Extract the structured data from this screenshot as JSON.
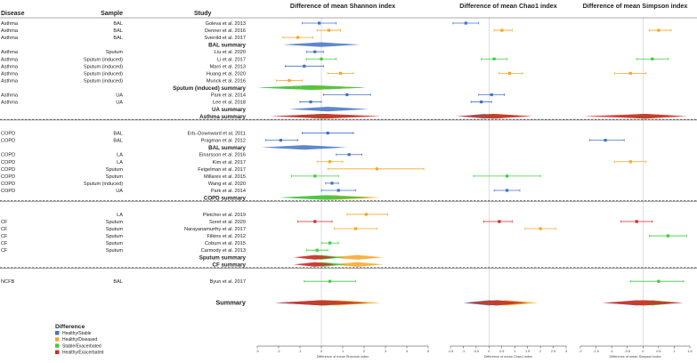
{
  "header": {
    "disease": "Disease",
    "sample": "Sample",
    "study": "Study"
  },
  "legend": {
    "title": "Difference",
    "items": [
      {
        "label": "Healthy/Stable",
        "color": "#4472c4"
      },
      {
        "label": "Healthy/Diseased",
        "color": "#f5a623"
      },
      {
        "label": "Stable/Exacerbated",
        "color": "#3ccc3c"
      },
      {
        "label": "Healthy/Exacerbated",
        "color": "#d62728"
      }
    ]
  },
  "chart_data": {
    "type": "forest",
    "panels": [
      {
        "key": "shannon",
        "title": "Difference of mean Shannon index",
        "xlabel": "Difference of mean Shannon index",
        "xlim": [
          -3,
          5
        ],
        "ticks": [
          -3,
          -2,
          -1,
          0,
          1,
          2,
          3,
          4,
          5
        ]
      },
      {
        "key": "chao1",
        "title": "Difference of mean Chao1 index",
        "xlabel": "Difference of mean Chao1 index",
        "xlim": [
          -1.5,
          3
        ],
        "ticks": [
          -1.5,
          -1,
          -0.5,
          0,
          0.5,
          1,
          1.5,
          2,
          2.5,
          3
        ]
      },
      {
        "key": "simpson",
        "title": "Difference of mean Simpson index",
        "xlabel": "Difference of mean Simpson index",
        "xlim": [
          -2,
          1.5
        ],
        "ticks": [
          -2,
          -1.5,
          -1,
          -0.5,
          0,
          0.5,
          1,
          1.5
        ]
      }
    ],
    "rows": [
      {
        "type": "study",
        "disease": "Asthma",
        "sample": "BAL",
        "study": "Goleva et al. 2013",
        "color": "#4472c4",
        "shannon": [
          -0.1,
          -0.9,
          0.7
        ],
        "chao1": [
          -0.9,
          -1.4,
          -0.4
        ]
      },
      {
        "type": "study",
        "disease": "Asthma",
        "sample": "BAL",
        "study": "Denner et al. 2016",
        "color": "#f5a623",
        "shannon": [
          0.35,
          -0.2,
          0.9
        ],
        "chao1": [
          0.5,
          0.2,
          0.9
        ],
        "simpson": [
          0.5,
          0.2,
          0.9
        ]
      },
      {
        "type": "study",
        "disease": "Asthma",
        "sample": "BAL",
        "study": "Sverrild et al. 2017",
        "color": "#f5a623",
        "shannon": [
          -1.1,
          -1.8,
          -0.4
        ]
      },
      {
        "type": "summary",
        "label": "BAL summary",
        "shannon": [
          {
            "color": "#4472c4",
            "est": 0.0,
            "lo": -1.8,
            "hi": 1.8
          }
        ]
      },
      {
        "type": "study",
        "disease": "Asthma",
        "sample": "Sputum",
        "study": "Liu et al. 2020",
        "color": "#4472c4",
        "shannon": [
          -0.3,
          -0.7,
          0.1
        ]
      },
      {
        "type": "study",
        "disease": "Asthma",
        "sample": "Sputum (induced)",
        "study": "Li et al. 2017",
        "color": "#3ccc3c",
        "shannon": [
          0.0,
          -0.7,
          0.7
        ],
        "chao1": [
          0.2,
          -0.3,
          0.7
        ],
        "simpson": [
          0.3,
          -0.2,
          0.8
        ]
      },
      {
        "type": "study",
        "disease": "Asthma",
        "sample": "Sputum (induced)",
        "study": "Marri et al. 2013",
        "color": "#4472c4",
        "shannon": [
          -0.8,
          -1.7,
          0.1
        ]
      },
      {
        "type": "study",
        "disease": "Asthma",
        "sample": "Sputum (induced)",
        "study": "Huang et al. 2020",
        "color": "#f5a623",
        "shannon": [
          0.9,
          0.3,
          1.5
        ],
        "chao1": [
          0.8,
          0.4,
          1.3
        ],
        "simpson": [
          -0.4,
          -0.9,
          0.1
        ]
      },
      {
        "type": "study",
        "disease": "Asthma",
        "sample": "Sputum (induced)",
        "study": "Munck et al. 2016",
        "color": "#f5a623",
        "shannon": [
          -1.5,
          -2.1,
          -0.9
        ]
      },
      {
        "type": "summary",
        "label": "Sputum (induced) summary",
        "shannon": [
          {
            "color": "#4472c4",
            "est": -0.4,
            "lo": -2.9,
            "hi": 2.1
          },
          {
            "color": "#f5a623",
            "est": -0.3,
            "lo": -2.5,
            "hi": 1.9
          },
          {
            "color": "#3ccc3c",
            "est": -0.5,
            "lo": -3.0,
            "hi": 2.0
          }
        ]
      },
      {
        "type": "study",
        "disease": "Asthma",
        "sample": "UA",
        "study": "Park et al. 2014",
        "color": "#4472c4",
        "shannon": [
          1.2,
          0.1,
          2.3
        ],
        "chao1": [
          0.1,
          -0.4,
          0.6
        ]
      },
      {
        "type": "study",
        "disease": "Asthma",
        "sample": "UA",
        "study": "Lee et al. 2018",
        "color": "#4472c4",
        "shannon": [
          -0.5,
          -1.0,
          0.0
        ],
        "chao1": [
          -0.3,
          -0.7,
          0.1
        ]
      },
      {
        "type": "summary",
        "label": "UA summary",
        "shannon": [
          {
            "color": "#4472c4",
            "est": 0.3,
            "lo": -1.5,
            "hi": 2.2
          }
        ]
      },
      {
        "type": "summary",
        "label": "Asthma summary",
        "underline": true,
        "shannon": [
          {
            "color": "#4472c4",
            "est": 0.0,
            "lo": -2.0,
            "hi": 2.0
          },
          {
            "color": "#f5a623",
            "est": 0.1,
            "lo": -1.9,
            "hi": 2.1
          },
          {
            "color": "#3ccc3c",
            "est": 0.0,
            "lo": -1.7,
            "hi": 1.7
          },
          {
            "color": "#d62728",
            "est": 0.2,
            "lo": -2.4,
            "hi": 2.8
          }
        ],
        "chao1": [
          {
            "color": "#4472c4",
            "est": -0.2,
            "lo": -1.1,
            "hi": 0.9
          },
          {
            "color": "#f5a623",
            "est": 0.3,
            "lo": -0.8,
            "hi": 1.4
          },
          {
            "color": "#3ccc3c",
            "est": 0.1,
            "lo": -0.9,
            "hi": 1.2
          },
          {
            "color": "#d62728",
            "est": 0.2,
            "lo": -1.3,
            "hi": 1.7
          }
        ],
        "simpson": [
          {
            "color": "#4472c4",
            "est": 0.0,
            "lo": -0.9,
            "hi": 0.9
          },
          {
            "color": "#f5a623",
            "est": 0.1,
            "lo": -1.0,
            "hi": 1.2
          },
          {
            "color": "#3ccc3c",
            "est": 0.0,
            "lo": -0.8,
            "hi": 0.8
          },
          {
            "color": "#d62728",
            "est": 0.1,
            "lo": -1.9,
            "hi": 1.4
          }
        ]
      },
      {
        "type": "gap"
      },
      {
        "type": "study",
        "disease": "COPD",
        "sample": "BAL",
        "study": "Erb–Downward et al. 2011",
        "color": "#4472c4",
        "shannon": [
          0.3,
          -0.9,
          1.5
        ]
      },
      {
        "type": "study",
        "disease": "COPD",
        "sample": "BAL",
        "study": "Pragman et al. 2012",
        "color": "#4472c4",
        "shannon": [
          -1.9,
          -2.6,
          -1.1
        ],
        "simpson": [
          -1.2,
          -1.7,
          -0.6
        ]
      },
      {
        "type": "summary",
        "label": "BAL summary",
        "shannon": [
          {
            "color": "#4472c4",
            "est": -0.8,
            "lo": -2.8,
            "hi": 1.2
          }
        ]
      },
      {
        "type": "study",
        "disease": "COPD",
        "sample": "LA",
        "study": "Einarsson et al. 2016",
        "color": "#4472c4",
        "shannon": [
          1.3,
          0.7,
          1.9
        ]
      },
      {
        "type": "study",
        "disease": "COPD",
        "sample": "LA",
        "study": "Kim et al. 2017",
        "color": "#f5a623",
        "shannon": [
          0.4,
          -0.2,
          1.0
        ],
        "simpson": [
          -0.4,
          -0.9,
          0.1
        ]
      },
      {
        "type": "study",
        "disease": "COPD",
        "sample": "Sputum",
        "study": "Feigelman et al. 2017",
        "color": "#f5a623",
        "shannon": [
          2.6,
          0.3,
          4.8
        ]
      },
      {
        "type": "study",
        "disease": "COPD",
        "sample": "Sputum",
        "study": "Millares et al. 2015",
        "color": "#3ccc3c",
        "shannon": [
          -0.3,
          -1.4,
          0.8
        ],
        "chao1": [
          0.7,
          -0.6,
          2.0
        ]
      },
      {
        "type": "study",
        "disease": "COPD",
        "sample": "Sputum (induced)",
        "study": "Wang et al. 2020",
        "color": "#4472c4",
        "shannon": [
          0.5,
          0.2,
          0.8
        ]
      },
      {
        "type": "study",
        "disease": "COPD",
        "sample": "UA",
        "study": "Park et al. 2014",
        "color": "#4472c4",
        "shannon": [
          0.8,
          0.0,
          1.6
        ],
        "chao1": [
          0.7,
          0.2,
          1.2
        ]
      },
      {
        "type": "summary",
        "label": "COPD summary",
        "underline": true,
        "shannon": [
          {
            "color": "#4472c4",
            "est": 0.3,
            "lo": -1.8,
            "hi": 2.4
          },
          {
            "color": "#f5a623",
            "est": 0.6,
            "lo": -1.5,
            "hi": 2.8
          },
          {
            "color": "#3ccc3c",
            "est": 0.2,
            "lo": -2.0,
            "hi": 2.3
          }
        ]
      },
      {
        "type": "gap"
      },
      {
        "type": "study",
        "disease": "",
        "sample": "LA",
        "study": "Pletcher et al. 2019",
        "color": "#f5a623",
        "shannon": [
          2.1,
          1.2,
          3.1
        ]
      },
      {
        "type": "study",
        "disease": "CF",
        "sample": "Sputum",
        "study": "Soret et al. 2020",
        "color": "#d62728",
        "shannon": [
          -0.3,
          -1.1,
          0.5
        ],
        "chao1": [
          0.4,
          -0.2,
          0.9
        ],
        "simpson": [
          -0.2,
          -0.7,
          0.3
        ]
      },
      {
        "type": "study",
        "disease": "CF",
        "sample": "Sputum",
        "study": "Narayanamurthy et al. 2017",
        "color": "#f5a623",
        "shannon": [
          1.6,
          0.6,
          2.6
        ],
        "chao1": [
          2.0,
          1.4,
          2.6
        ]
      },
      {
        "type": "study",
        "disease": "CF",
        "sample": "Sputum",
        "study": "Filkins et al. 2012",
        "color": "#3ccc3c",
        "simpson": [
          0.8,
          0.2,
          1.4
        ]
      },
      {
        "type": "study",
        "disease": "CF",
        "sample": "Sputum",
        "study": "Coburn et al. 2015",
        "color": "#3ccc3c",
        "shannon": [
          0.4,
          0.0,
          0.8
        ]
      },
      {
        "type": "study",
        "disease": "CF",
        "sample": "Sputum",
        "study": "Carmody et al. 2013",
        "color": "#3ccc3c",
        "shannon": [
          -0.2,
          -0.7,
          0.3
        ]
      },
      {
        "type": "summary",
        "label": "Sputum summary",
        "shannon": [
          {
            "color": "#f5a623",
            "est": 1.7,
            "lo": 0.3,
            "hi": 2.9
          },
          {
            "color": "#3ccc3c",
            "est": 0.0,
            "lo": -1.1,
            "hi": 1.1
          },
          {
            "color": "#d62728",
            "est": -0.3,
            "lo": -1.3,
            "hi": 0.7
          }
        ]
      },
      {
        "type": "summary",
        "label": "CF summary",
        "underline": true,
        "shannon": [
          {
            "color": "#f5a623",
            "est": 1.7,
            "lo": 0.4,
            "hi": 2.9
          },
          {
            "color": "#3ccc3c",
            "est": 0.1,
            "lo": -1.0,
            "hi": 1.2
          },
          {
            "color": "#d62728",
            "est": -0.3,
            "lo": -1.3,
            "hi": 0.7
          }
        ]
      },
      {
        "type": "gap"
      },
      {
        "type": "study",
        "disease": "NCFB",
        "sample": "BAL",
        "study": "Byun et al. 2017",
        "color": "#3ccc3c",
        "shannon": [
          0.4,
          -0.8,
          1.6
        ],
        "simpson": [
          0.5,
          -0.4,
          1.3
        ]
      },
      {
        "type": "spacer"
      },
      {
        "type": "spacer"
      },
      {
        "type": "summary",
        "label": "Summary",
        "big": true,
        "shannon": [
          {
            "color": "#4472c4",
            "est": 0.1,
            "lo": -2.2,
            "hi": 2.3
          },
          {
            "color": "#f5a623",
            "est": 0.7,
            "lo": -1.4,
            "hi": 2.8
          },
          {
            "color": "#3ccc3c",
            "est": 0.2,
            "lo": -1.6,
            "hi": 2.0
          },
          {
            "color": "#d62728",
            "est": 0.0,
            "lo": -2.1,
            "hi": 2.2
          }
        ],
        "chao1": [
          {
            "color": "#4472c4",
            "est": 0.0,
            "lo": -1.0,
            "hi": 1.0
          },
          {
            "color": "#f5a623",
            "est": 0.7,
            "lo": -0.5,
            "hi": 1.9
          },
          {
            "color": "#3ccc3c",
            "est": 0.3,
            "lo": -0.7,
            "hi": 1.3
          },
          {
            "color": "#d62728",
            "est": 0.3,
            "lo": -0.9,
            "hi": 1.5
          }
        ],
        "simpson": [
          {
            "color": "#4472c4",
            "est": -0.2,
            "lo": -1.2,
            "hi": 0.8
          },
          {
            "color": "#f5a623",
            "est": 0.1,
            "lo": -0.9,
            "hi": 1.0
          },
          {
            "color": "#3ccc3c",
            "est": 0.3,
            "lo": -0.6,
            "hi": 1.2
          },
          {
            "color": "#d62728",
            "est": 0.0,
            "lo": -1.3,
            "hi": 1.3
          }
        ]
      }
    ]
  }
}
